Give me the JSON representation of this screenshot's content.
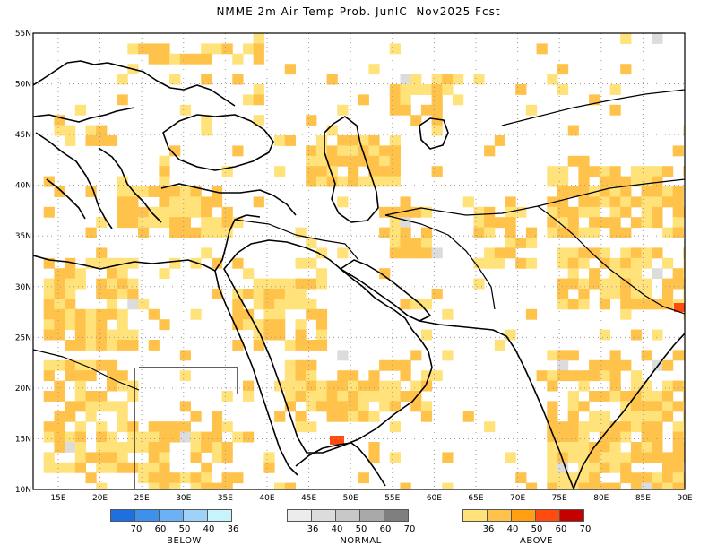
{
  "title": "NMME 2m Air Temp Prob. JunIC  Nov2025 Fcst",
  "axes": {
    "lon_labels": [
      "15E",
      "20E",
      "25E",
      "30E",
      "35E",
      "40E",
      "45E",
      "50E",
      "55E",
      "60E",
      "65E",
      "70E",
      "75E",
      "80E",
      "85E",
      "90E"
    ],
    "lat_labels": [
      "55N",
      "50N",
      "45N",
      "40N",
      "35N",
      "30N",
      "25N",
      "20N",
      "15N",
      "10N"
    ],
    "lon_range": [
      12,
      90
    ],
    "lat_range": [
      10,
      55
    ]
  },
  "legend": {
    "below": {
      "label": "BELOW",
      "values": [
        "70",
        "60",
        "50",
        "40",
        "36"
      ],
      "colors": [
        "#1e6fe0",
        "#3c91ea",
        "#6cb1f3",
        "#9fd2f8",
        "#c7f3fb"
      ]
    },
    "normal": {
      "label": "NORMAL",
      "values": [
        "36",
        "40",
        "50",
        "60",
        "70"
      ],
      "colors": [
        "#ececec",
        "#dcdcdc",
        "#c8c8c8",
        "#a8a8a8",
        "#7f7f7f"
      ]
    },
    "above": {
      "label": "ABOVE",
      "values": [
        "36",
        "40",
        "50",
        "60",
        "70"
      ],
      "colors": [
        "#ffe27a",
        "#ffc24a",
        "#ff9f12",
        "#ff4a10",
        "#c40000"
      ]
    }
  },
  "colors": {
    "coastline": "#000000",
    "grid": "#9a9a9a",
    "above_40": "#ffc24a",
    "above_36": "#ffe27a",
    "above_60": "#ff4a10",
    "normal_40": "#dcdcdc"
  }
}
